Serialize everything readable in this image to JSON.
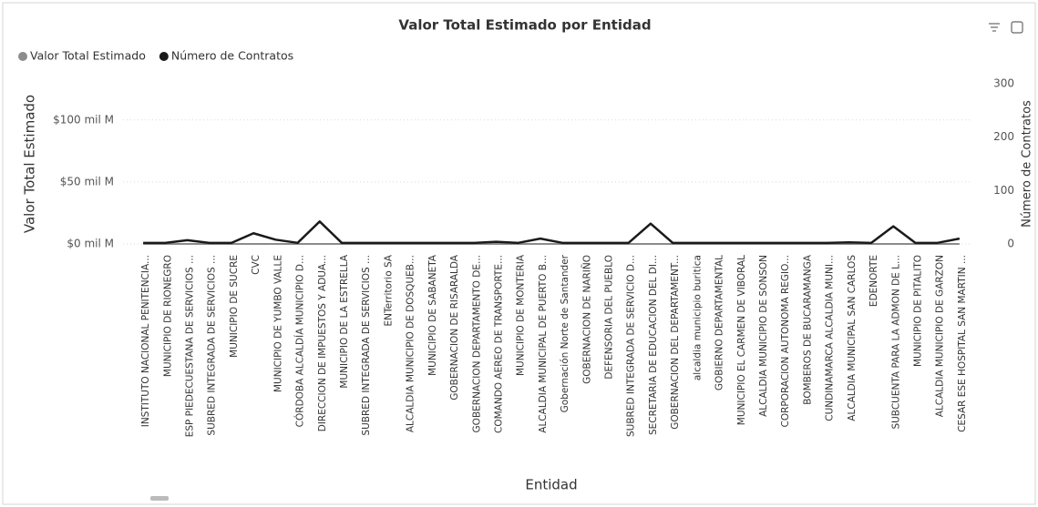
{
  "chart_data": {
    "type": "line",
    "title": "Valor Total Estimado por Entidad",
    "x_label": "Entidad",
    "y_label": "Valor Total Estimado",
    "y2_label": "Número de Contratos",
    "categories": [
      "INSTITUTO NACIONAL PENITENCIA...",
      "MUNICIPIO DE RIONEGRO",
      "ESP PIEDECUESTANA DE SERVICIOS ...",
      "SUBRED INTEGRADA DE SERVICIOS ...",
      "MUNICIPIO DE SUCRE",
      "CVC",
      "MUNICIPIO DE YUMBO VALLE",
      "CÓRDOBA ALCALDÍA MUNICIPIO D...",
      "DIRECCION DE IMPUESTOS Y ADUA...",
      "MUNICIPIO DE LA ESTRELLA",
      "SUBRED INTEGRADA DE SERVICIOS ...",
      "ENTerritorio SA",
      "ALCALDIA MUNICIPIO DE DOSQUEB...",
      "MUNICIPIO DE SABANETA",
      "GOBERNACION DE RISARALDA",
      "GOBERNACION DEPARTAMENTO DE...",
      "COMANDO AEREO DE TRANSPORTE...",
      "MUNICIPIO DE MONTERIA",
      "ALCALDIA MUNICIPAL DE PUERTO B...",
      "Gobernación Norte de Santander",
      "GOBERNACION DE NARIÑO",
      "DEFENSORIA DEL PUEBLO",
      "SUBRED INTEGRADA DE SERVICIO D...",
      "SECRETARIA DE EDUCACION DEL DI...",
      "GOBERNACION DEL DEPARTAMENT...",
      "alcaldia municipio buritica",
      "GOBIERNO DEPARTAMENTAL",
      "MUNICIPIO EL CARMEN DE VIBORAL",
      "ALCALDIA MUNICIPIO DE SONSON",
      "CORPORACION AUTONOMA REGIO...",
      "BOMBEROS DE BUCARAMANGA",
      "CUNDINAMARCA ALCALDIA MUNI...",
      "ALCALDIA MUNICIPAL SAN CARLOS",
      "EDENORTE",
      "SUBCUENTA PARA LA ADMON DE L...",
      "MUNICIPIO DE PITALITO",
      "ALCALDIA MUNICIPIO DE GARZON",
      "CESAR ESE HOSPITAL SAN MARTIN ..."
    ],
    "series": [
      {
        "name": "Valor Total Estimado",
        "color": "#8c8c8c",
        "values": [
          0,
          0,
          0,
          0,
          0,
          0,
          0,
          0,
          0,
          0,
          0,
          0,
          0,
          0,
          0,
          0,
          0,
          0,
          0,
          0,
          0,
          0,
          0,
          0,
          0,
          0,
          0,
          0,
          0,
          0,
          0,
          0,
          0,
          0,
          0,
          0,
          0,
          0
        ]
      },
      {
        "name": "Número de Contratos",
        "color": "#1a1a1a",
        "axis": "y2",
        "values": [
          2,
          2,
          7,
          2,
          2,
          20,
          8,
          2,
          42,
          2,
          2,
          2,
          2,
          2,
          2,
          2,
          4,
          2,
          10,
          2,
          2,
          2,
          2,
          38,
          2,
          2,
          2,
          2,
          2,
          2,
          2,
          2,
          3,
          2,
          33,
          2,
          2,
          10
        ]
      }
    ],
    "ylim": [
      0,
      138
    ],
    "yticks": [
      {
        "value": 0,
        "label": "$0 mil M"
      },
      {
        "value": 50,
        "label": "$50 mil M"
      },
      {
        "value": 100,
        "label": "$100 mil M"
      }
    ],
    "y2lim": [
      0,
      320
    ],
    "y2ticks": [
      0,
      100,
      200,
      300
    ],
    "grid": true,
    "legend": "top-left"
  }
}
